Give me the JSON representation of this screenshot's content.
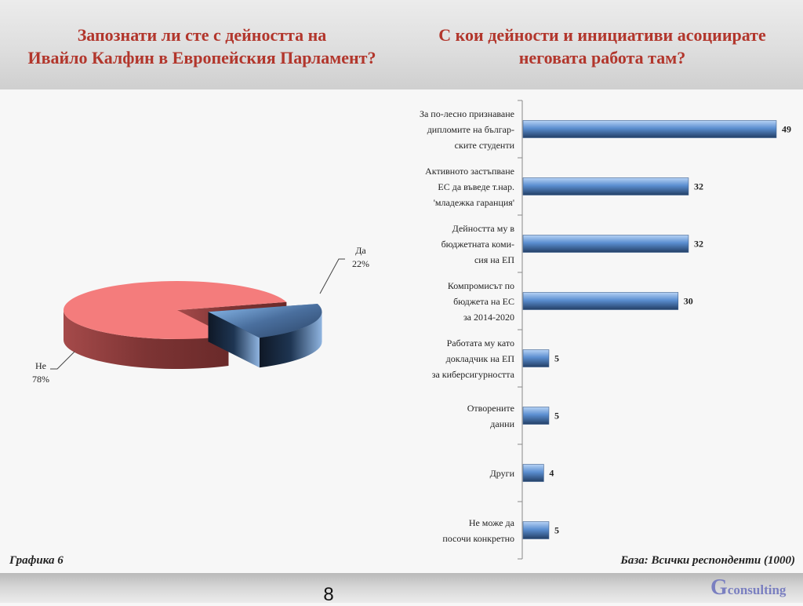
{
  "header": {
    "left_title_line1": "Запознати ли сте с дейността на",
    "left_title_line2": "Ивайло Калфин в Европейския Парламент?",
    "right_title_line1": "С кои дейности и инициативи асоциирате",
    "right_title_line2": "неговата работа там?"
  },
  "footer": {
    "chart_ref": "Графика 6",
    "base": "База:  Всички респонденти (1000)",
    "page_number": "8",
    "logo_letter": "G",
    "logo_text": "consulting"
  },
  "colors": {
    "title": "#b2362c",
    "pie_no": "#f47c7c",
    "pie_yes": "#4a6f9e",
    "bar": "#4f7fc0",
    "logo": "#7a7fc0"
  },
  "chart_data": [
    {
      "type": "pie",
      "categories": [
        "Да",
        "Не"
      ],
      "values": [
        22,
        78
      ],
      "value_labels": [
        "22%",
        "78%"
      ],
      "unit": "%",
      "style": "3d-exploded"
    },
    {
      "type": "bar",
      "orientation": "horizontal",
      "categories": [
        [
          "За по-лесно признаване",
          "дипломите на българ-",
          "ските студенти"
        ],
        [
          "Активното застъпване",
          "ЕС да въведе т.нар.",
          "'младежка гаранция'"
        ],
        [
          "Дейността му в",
          "бюджетната коми-",
          "сия на ЕП"
        ],
        [
          "Компромисът по",
          "бюджета на ЕС",
          "за 2014-2020"
        ],
        [
          "Работата му като",
          "докладчик на ЕП",
          "за киберсигурността"
        ],
        [
          "Отворените",
          "данни"
        ],
        [
          "Други"
        ],
        [
          "Не може да",
          "посочи конкретно"
        ]
      ],
      "values": [
        49,
        32,
        32,
        30,
        5,
        5,
        4,
        5
      ],
      "xlim": [
        0,
        49
      ],
      "data_labels": true,
      "grid": false,
      "legend": "none"
    }
  ]
}
